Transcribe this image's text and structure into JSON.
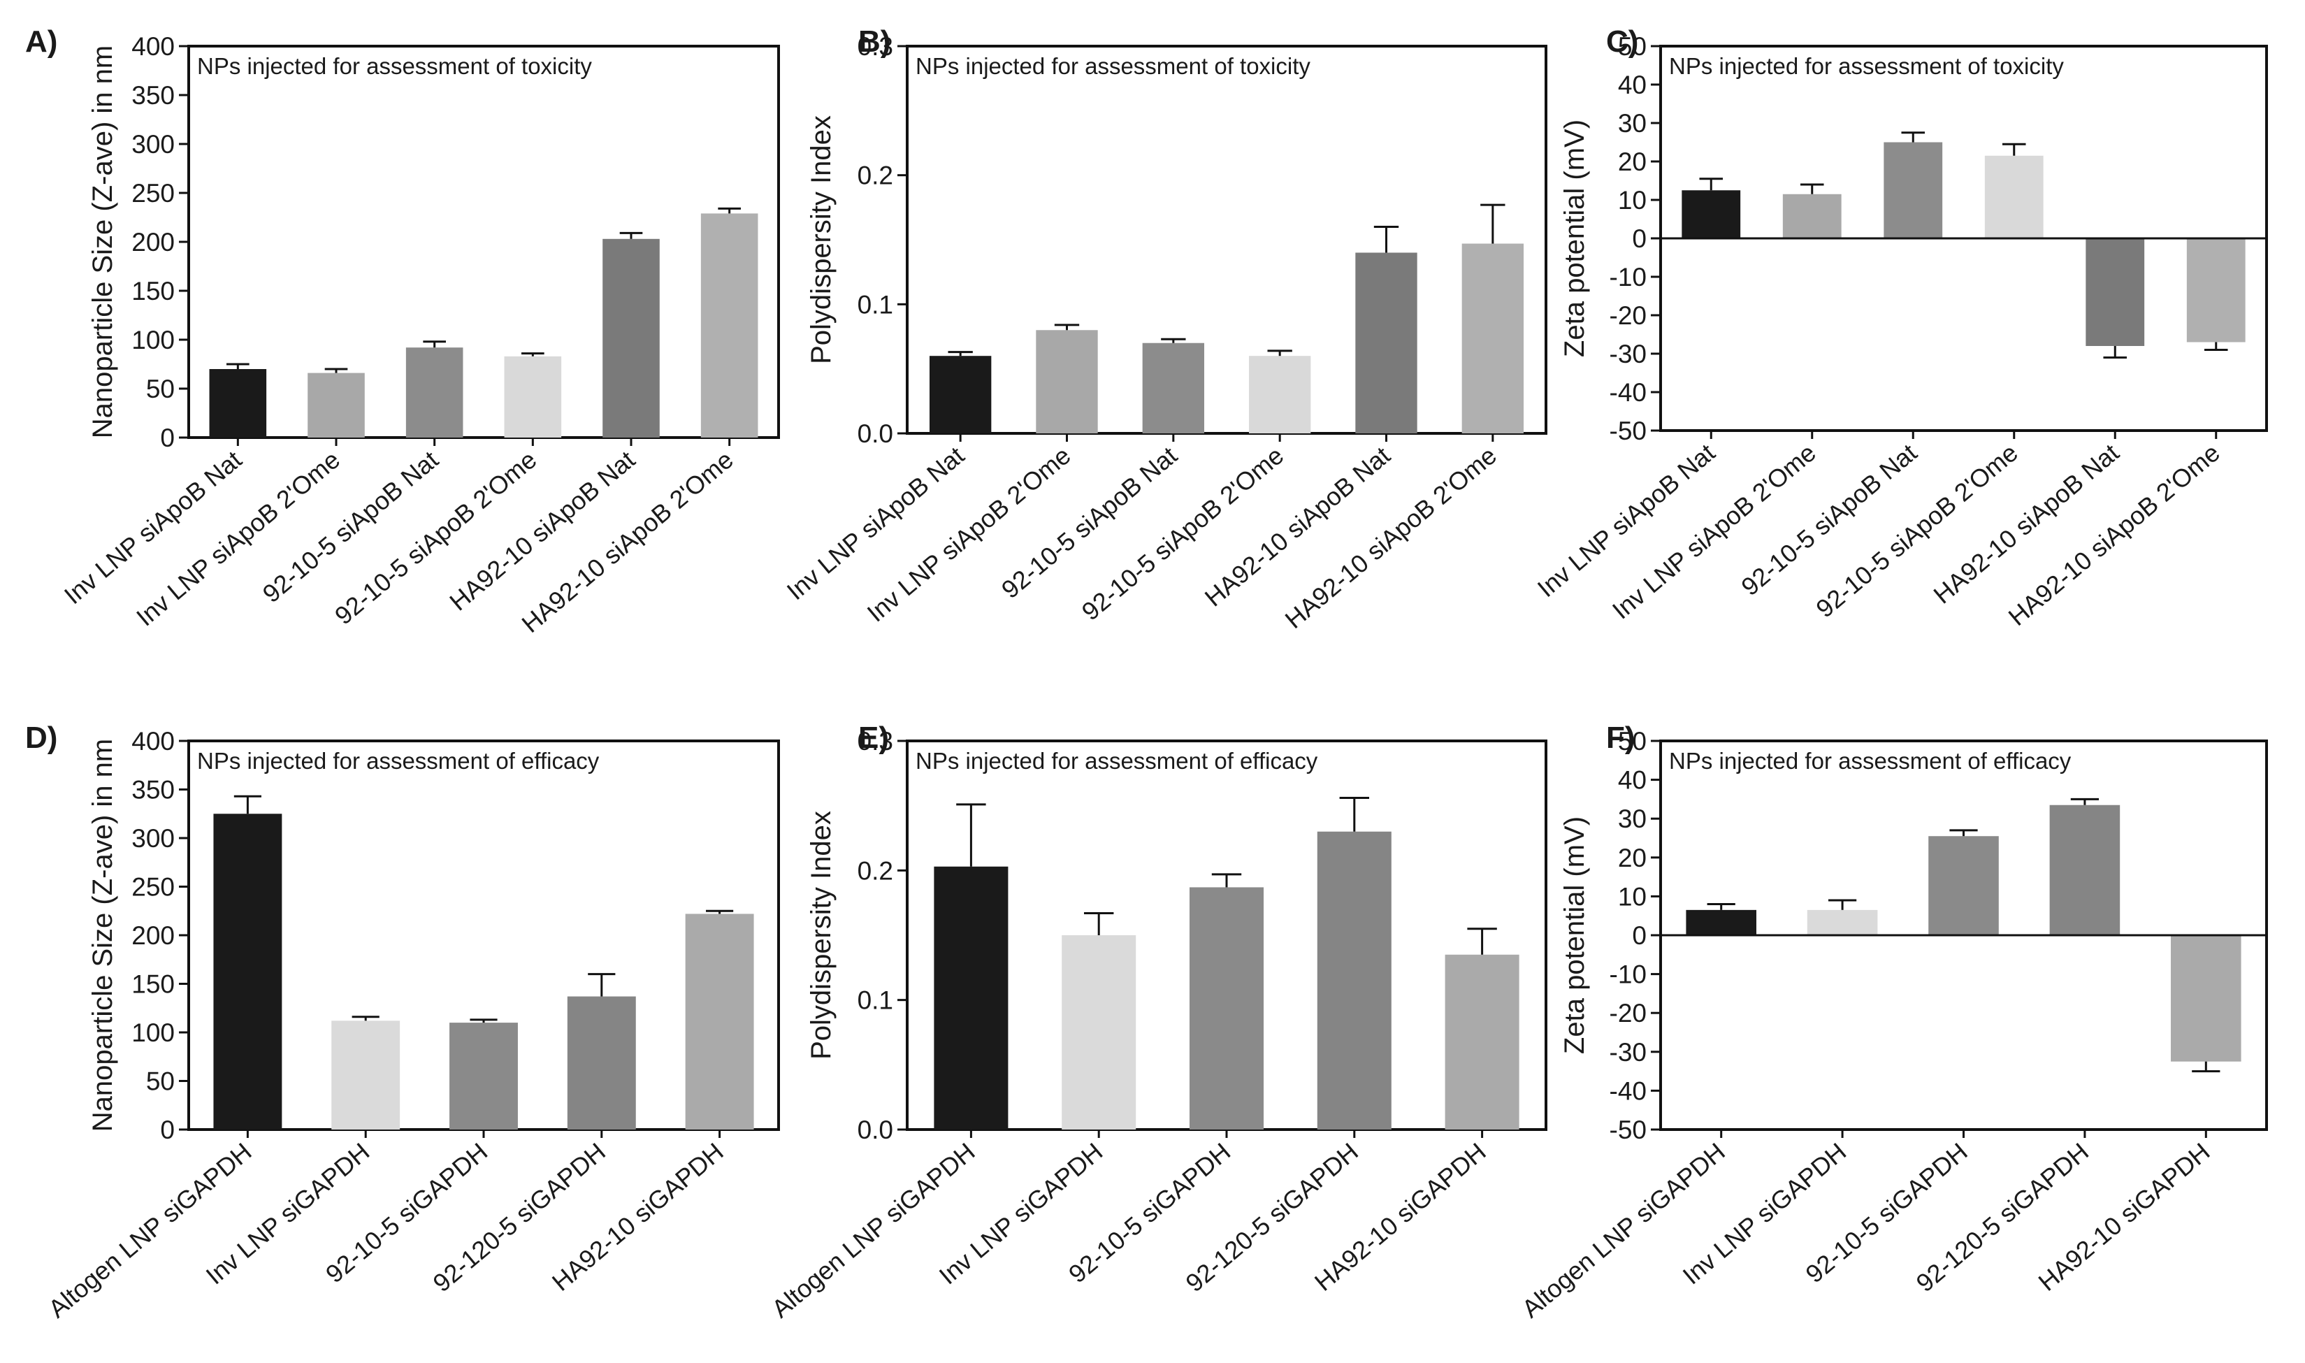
{
  "figure": {
    "panels_note": "Six bar charts of nanoparticle characterization"
  },
  "chart_data": [
    {
      "id": "A",
      "panel_label": "A)",
      "type": "bar",
      "title": "NPs injected for assessment of toxicity",
      "xlabel": "",
      "ylabel": "Nanoparticle Size (Z-ave) in nm",
      "ylim": [
        0,
        400
      ],
      "ytick_values": [
        0,
        50,
        100,
        150,
        200,
        250,
        300,
        350,
        400
      ],
      "yticks": [
        "0",
        "50",
        "100",
        "150",
        "200",
        "250",
        "300",
        "350",
        "400"
      ],
      "categories": [
        "Inv LNP siApoB Nat",
        "Inv LNP siApoB 2'Ome",
        "92-10-5 siApoB Nat",
        "92-10-5 siApoB 2'Ome",
        "HA92-10 siApoB Nat",
        "HA92-10 siApoB 2'Ome"
      ],
      "values": [
        70,
        66,
        92,
        83,
        203,
        229
      ],
      "errors": [
        5,
        4,
        6,
        3,
        6,
        5
      ],
      "colors": [
        "#1a1a1a",
        "#a8a8a8",
        "#8c8c8c",
        "#d9d9d9",
        "#7a7a7a",
        "#b0b0b0"
      ],
      "zero_line": false
    },
    {
      "id": "B",
      "panel_label": "B)",
      "type": "bar",
      "title": "NPs injected for assessment of toxicity",
      "xlabel": "",
      "ylabel": "Polydispersity Index",
      "ylim": [
        0,
        0.3
      ],
      "ytick_values": [
        0,
        0.1,
        0.2,
        0.3
      ],
      "yticks": [
        "0.0",
        "0.1",
        "0.2",
        "0.3"
      ],
      "categories": [
        "Inv LNP siApoB Nat",
        "Inv LNP siApoB 2'Ome",
        "92-10-5 siApoB Nat",
        "92-10-5 siApoB 2'Ome",
        "HA92-10 siApoB Nat",
        "HA92-10 siApoB 2'Ome"
      ],
      "values": [
        0.06,
        0.08,
        0.07,
        0.06,
        0.14,
        0.147
      ],
      "errors": [
        0.003,
        0.004,
        0.003,
        0.004,
        0.02,
        0.03
      ],
      "colors": [
        "#1a1a1a",
        "#a8a8a8",
        "#8c8c8c",
        "#d9d9d9",
        "#7a7a7a",
        "#b0b0b0"
      ],
      "zero_line": false
    },
    {
      "id": "C",
      "panel_label": "C)",
      "type": "bar",
      "title": "NPs injected for assessment of toxicity",
      "xlabel": "",
      "ylabel": "Zeta potential (mV)",
      "ylim": [
        -50,
        50
      ],
      "ytick_values": [
        -50,
        -40,
        -30,
        -20,
        -10,
        0,
        10,
        20,
        30,
        40,
        50
      ],
      "yticks": [
        "-50",
        "-40",
        "-30",
        "-20",
        "-10",
        "0",
        "10",
        "20",
        "30",
        "40",
        "50"
      ],
      "categories": [
        "Inv LNP siApoB Nat",
        "Inv LNP siApoB 2'Ome",
        "92-10-5 siApoB Nat",
        "92-10-5 siApoB 2'Ome",
        "HA92-10 siApoB Nat",
        "HA92-10 siApoB 2'Ome"
      ],
      "values": [
        12.5,
        11.5,
        25,
        21.5,
        -28,
        -27
      ],
      "errors": [
        3,
        2.5,
        2.5,
        3,
        3,
        2
      ],
      "colors": [
        "#1a1a1a",
        "#a8a8a8",
        "#8c8c8c",
        "#d9d9d9",
        "#7a7a7a",
        "#b0b0b0"
      ],
      "zero_line": true
    },
    {
      "id": "D",
      "panel_label": "D)",
      "type": "bar",
      "title": "NPs injected for assessment of efficacy",
      "xlabel": "",
      "ylabel": "Nanoparticle Size (Z-ave) in nm",
      "ylim": [
        0,
        400
      ],
      "ytick_values": [
        0,
        50,
        100,
        150,
        200,
        250,
        300,
        350,
        400
      ],
      "yticks": [
        "0",
        "50",
        "100",
        "150",
        "200",
        "250",
        "300",
        "350",
        "400"
      ],
      "categories": [
        "Altogen LNP siGAPDH",
        "Inv LNP siGAPDH",
        "92-10-5 siGAPDH",
        "92-120-5 siGAPDH",
        "HA92-10 siGAPDH"
      ],
      "values": [
        325,
        112,
        110,
        137,
        222
      ],
      "errors": [
        18,
        4,
        3,
        23,
        3
      ],
      "colors": [
        "#1a1a1a",
        "#dadada",
        "#8a8a8a",
        "#858585",
        "#aaaaaa"
      ],
      "zero_line": false
    },
    {
      "id": "E",
      "panel_label": "E)",
      "type": "bar",
      "title": "NPs injected for assessment of efficacy",
      "xlabel": "",
      "ylabel": "Polydispersity Index",
      "ylim": [
        0,
        0.3
      ],
      "ytick_values": [
        0,
        0.1,
        0.2,
        0.3
      ],
      "yticks": [
        "0.0",
        "0.1",
        "0.2",
        "0.3"
      ],
      "categories": [
        "Altogen LNP siGAPDH",
        "Inv LNP siGAPDH",
        "92-10-5 siGAPDH",
        "92-120-5 siGAPDH",
        "HA92-10 siGAPDH"
      ],
      "values": [
        0.203,
        0.15,
        0.187,
        0.23,
        0.135
      ],
      "errors": [
        0.048,
        0.017,
        0.01,
        0.026,
        0.02
      ],
      "colors": [
        "#1a1a1a",
        "#dadada",
        "#8a8a8a",
        "#858585",
        "#aaaaaa"
      ],
      "zero_line": false
    },
    {
      "id": "F",
      "panel_label": "F)",
      "type": "bar",
      "title": "NPs injected for assessment of efficacy",
      "xlabel": "",
      "ylabel": "Zeta potential (mV)",
      "ylim": [
        -50,
        50
      ],
      "ytick_values": [
        -50,
        -40,
        -30,
        -20,
        -10,
        0,
        10,
        20,
        30,
        40,
        50
      ],
      "yticks": [
        "-50",
        "-40",
        "-30",
        "-20",
        "-10",
        "0",
        "10",
        "20",
        "30",
        "40",
        "50"
      ],
      "categories": [
        "Altogen LNP siGAPDH",
        "Inv LNP siGAPDH",
        "92-10-5 siGAPDH",
        "92-120-5 siGAPDH",
        "HA92-10 siGAPDH"
      ],
      "values": [
        6.5,
        6.5,
        25.5,
        33.5,
        -32.5
      ],
      "errors": [
        1.5,
        2.5,
        1.5,
        1.5,
        2.5
      ],
      "colors": [
        "#1a1a1a",
        "#dadada",
        "#8a8a8a",
        "#858585",
        "#aaaaaa"
      ],
      "zero_line": true
    }
  ]
}
